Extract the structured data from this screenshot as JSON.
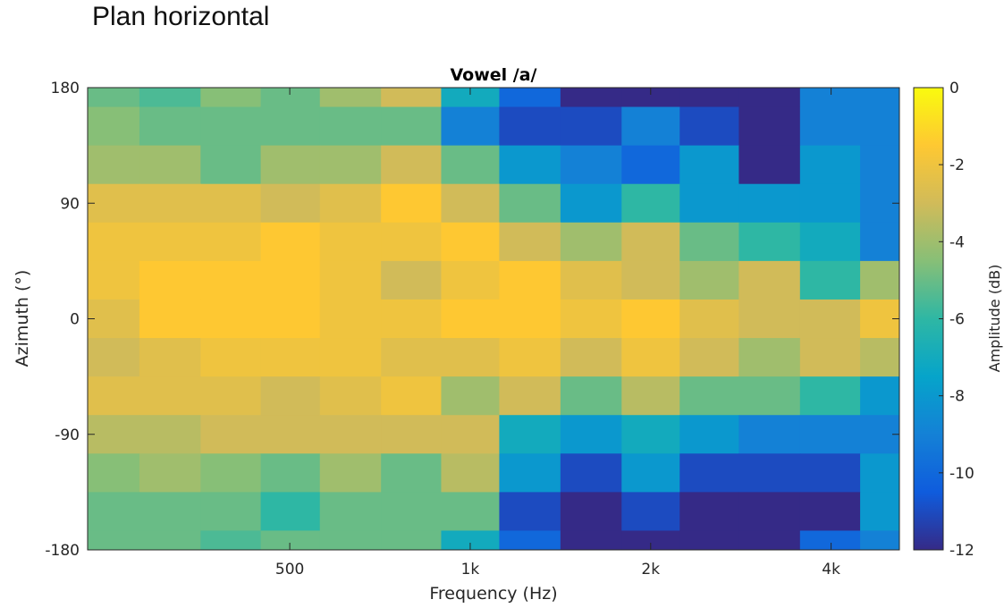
{
  "page": {
    "heading": "Plan horizontal"
  },
  "chart_data": {
    "type": "heatmap",
    "title": "Vowel /a/",
    "xlabel": "Frequency (Hz)",
    "ylabel": "Azimuth (°)",
    "x_scale": "log",
    "xlim": [
      230,
      5200
    ],
    "ylim": [
      -180,
      180
    ],
    "x_ticks": [
      {
        "value": 500,
        "label": "500"
      },
      {
        "value": 1000,
        "label": "1k"
      },
      {
        "value": 2000,
        "label": "2k"
      },
      {
        "value": 4000,
        "label": "4k"
      }
    ],
    "y_ticks": [
      {
        "value": 180,
        "label": "180"
      },
      {
        "value": 90,
        "label": "90"
      },
      {
        "value": 0,
        "label": "0"
      },
      {
        "value": -90,
        "label": "-90"
      },
      {
        "value": -180,
        "label": "-180"
      }
    ],
    "colorbar": {
      "label": "Amplitude (dB)",
      "clim": [
        -12,
        0
      ],
      "colormap": "parula",
      "ticks": [
        {
          "value": 0,
          "label": "0"
        },
        {
          "value": -2,
          "label": "-2"
        },
        {
          "value": -4,
          "label": "-4"
        },
        {
          "value": -6,
          "label": "-6"
        },
        {
          "value": -8,
          "label": "-8"
        },
        {
          "value": -10,
          "label": "-10"
        },
        {
          "value": -12,
          "label": "-12"
        }
      ]
    },
    "frequency_hz": [
      250,
      315,
      400,
      500,
      630,
      800,
      1000,
      1250,
      1600,
      2000,
      2500,
      3150,
      4000,
      5000
    ],
    "azimuth_deg": [
      180,
      150,
      120,
      90,
      60,
      30,
      0,
      -30,
      -60,
      -90,
      -120,
      -150,
      -180
    ],
    "amplitude_db": [
      [
        -5,
        -5.5,
        -4.5,
        -5,
        -4,
        -3,
        -7,
        -10,
        -12,
        -12,
        -12,
        -12,
        -9,
        -9
      ],
      [
        -4.5,
        -5,
        -5,
        -5,
        -5,
        -5,
        -9,
        -11,
        -11,
        -9,
        -11,
        -12,
        -9,
        -9
      ],
      [
        -4,
        -4,
        -5,
        -4,
        -4,
        -3,
        -5,
        -8,
        -9,
        -10,
        -8,
        -12,
        -8,
        -9
      ],
      [
        -2.5,
        -2.5,
        -2.5,
        -3,
        -2.5,
        -1.5,
        -3,
        -5,
        -8,
        -6,
        -8,
        -8,
        -8,
        -9
      ],
      [
        -2,
        -2,
        -2,
        -1.5,
        -2,
        -2,
        -1.5,
        -3,
        -4,
        -3,
        -5,
        -6,
        -7,
        -9
      ],
      [
        -2,
        -1.5,
        -1.5,
        -1.5,
        -2,
        -3,
        -2,
        -1.5,
        -2.5,
        -3,
        -4,
        -3,
        -6,
        -4
      ],
      [
        -2.5,
        -1.5,
        -1.5,
        -1.5,
        -2,
        -2,
        -1.5,
        -1.5,
        -2,
        -1.5,
        -2.5,
        -3,
        -3,
        -2
      ],
      [
        -3,
        -2.5,
        -2,
        -2,
        -2,
        -2.5,
        -2.5,
        -2,
        -3,
        -2,
        -3,
        -4,
        -3,
        -3.5
      ],
      [
        -2.5,
        -2.5,
        -2.5,
        -3,
        -2.5,
        -2,
        -4,
        -3,
        -5,
        -3.5,
        -5,
        -5,
        -6,
        -8
      ],
      [
        -3.5,
        -3.5,
        -3,
        -3,
        -3,
        -3,
        -3,
        -7,
        -8,
        -7,
        -8,
        -9,
        -9,
        -9
      ],
      [
        -4.5,
        -4,
        -4.5,
        -5,
        -4,
        -5,
        -3.5,
        -8,
        -11,
        -8,
        -11,
        -11,
        -11,
        -8
      ],
      [
        -5,
        -5,
        -5,
        -6,
        -5,
        -5,
        -5,
        -11,
        -12,
        -11,
        -12,
        -12,
        -12,
        -8
      ],
      [
        -5,
        -5,
        -5.5,
        -5,
        -5,
        -5,
        -7,
        -10,
        -12,
        -12,
        -12,
        -12,
        -10,
        -9
      ]
    ]
  }
}
